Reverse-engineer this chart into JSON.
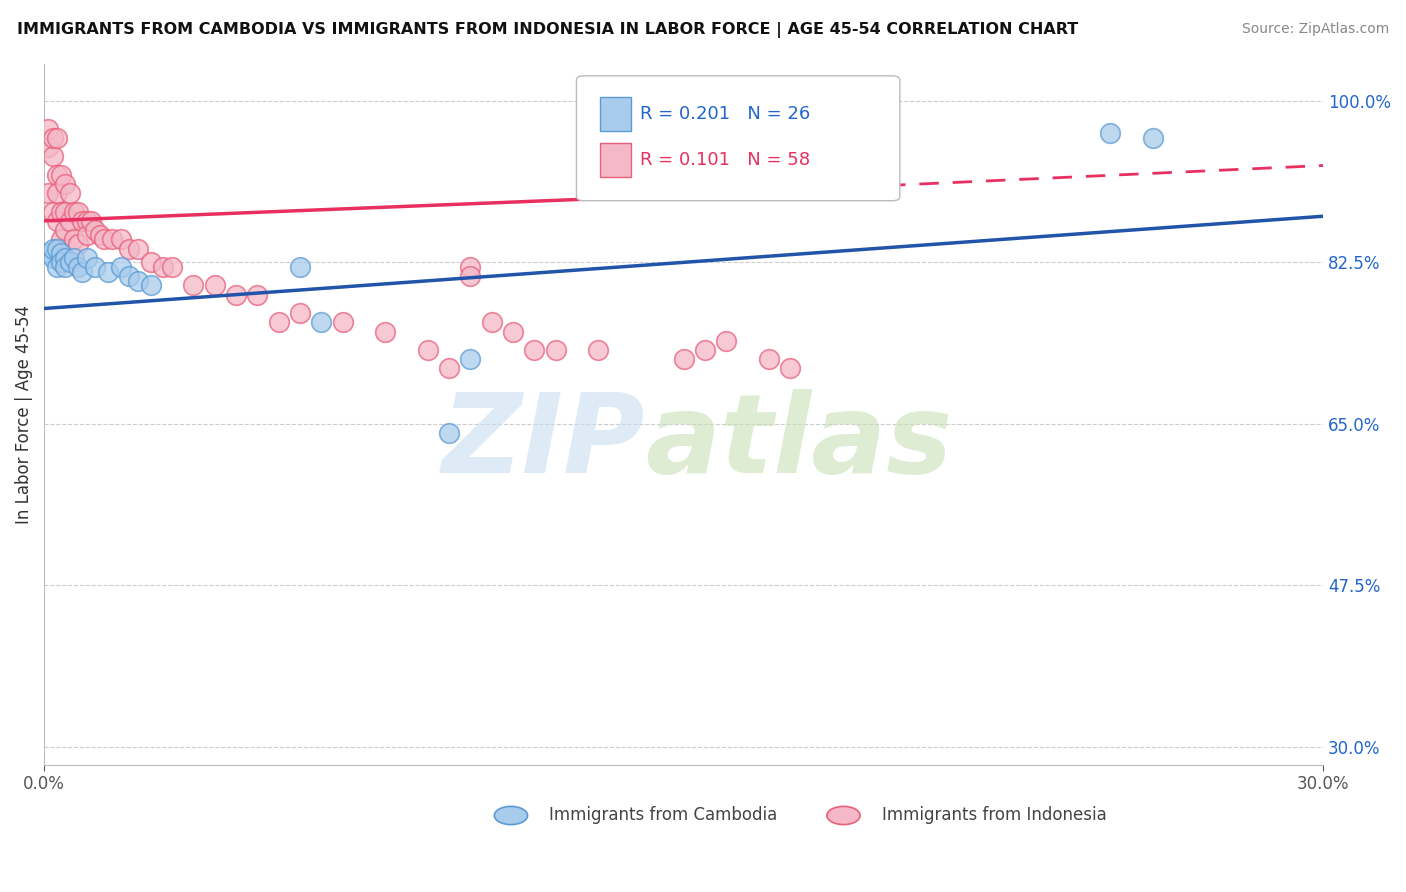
{
  "title": "IMMIGRANTS FROM CAMBODIA VS IMMIGRANTS FROM INDONESIA IN LABOR FORCE | AGE 45-54 CORRELATION CHART",
  "source": "Source: ZipAtlas.com",
  "ylabel": "In Labor Force | Age 45-54",
  "xlim": [
    0.0,
    0.3
  ],
  "ylim": [
    0.28,
    1.04
  ],
  "yticks_right": [
    1.0,
    0.825,
    0.65,
    0.475,
    0.3
  ],
  "yticklabels_right": [
    "100.0%",
    "82.5%",
    "65.0%",
    "47.5%",
    "30.0%"
  ],
  "color_cambodia_fill": "#a8ccec",
  "color_cambodia_edge": "#5b9bd5",
  "color_indonesia_fill": "#f4b8c8",
  "color_indonesia_edge": "#e8607a",
  "color_line_cambodia": "#2255aa",
  "color_line_indonesia": "#e83060",
  "watermark_zip": "#c8dff0",
  "watermark_atlas": "#c8e0b8",
  "cambodia_x": [
    0.001,
    0.002,
    0.002,
    0.003,
    0.003,
    0.004,
    0.004,
    0.005,
    0.005,
    0.006,
    0.007,
    0.008,
    0.009,
    0.01,
    0.012,
    0.015,
    0.018,
    0.02,
    0.022,
    0.025,
    0.06,
    0.065,
    0.095,
    0.1,
    0.25,
    0.26
  ],
  "cambodia_y": [
    0.835,
    0.83,
    0.84,
    0.84,
    0.82,
    0.835,
    0.825,
    0.83,
    0.82,
    0.825,
    0.83,
    0.82,
    0.815,
    0.83,
    0.82,
    0.815,
    0.82,
    0.81,
    0.805,
    0.8,
    0.82,
    0.76,
    0.64,
    0.72,
    0.965,
    0.96
  ],
  "indonesia_x": [
    0.001,
    0.001,
    0.001,
    0.002,
    0.002,
    0.002,
    0.003,
    0.003,
    0.003,
    0.003,
    0.004,
    0.004,
    0.004,
    0.005,
    0.005,
    0.005,
    0.006,
    0.006,
    0.007,
    0.007,
    0.008,
    0.008,
    0.009,
    0.01,
    0.01,
    0.011,
    0.012,
    0.013,
    0.014,
    0.016,
    0.018,
    0.02,
    0.022,
    0.025,
    0.028,
    0.03,
    0.035,
    0.04,
    0.045,
    0.05,
    0.055,
    0.06,
    0.07,
    0.08,
    0.09,
    0.095,
    0.1,
    0.1,
    0.105,
    0.11,
    0.115,
    0.12,
    0.13,
    0.15,
    0.155,
    0.16,
    0.17,
    0.175
  ],
  "indonesia_y": [
    0.9,
    0.95,
    0.97,
    0.94,
    0.96,
    0.88,
    0.96,
    0.92,
    0.9,
    0.87,
    0.92,
    0.88,
    0.85,
    0.91,
    0.88,
    0.86,
    0.9,
    0.87,
    0.88,
    0.85,
    0.88,
    0.845,
    0.87,
    0.87,
    0.855,
    0.87,
    0.86,
    0.855,
    0.85,
    0.85,
    0.85,
    0.84,
    0.84,
    0.825,
    0.82,
    0.82,
    0.8,
    0.8,
    0.79,
    0.79,
    0.76,
    0.77,
    0.76,
    0.75,
    0.73,
    0.71,
    0.82,
    0.81,
    0.76,
    0.75,
    0.73,
    0.73,
    0.73,
    0.72,
    0.73,
    0.74,
    0.72,
    0.71
  ],
  "trendline_cambodia": [
    0.0,
    0.3,
    0.775,
    0.875
  ],
  "trendline_indonesia_solid": [
    0.0,
    0.135,
    0.87,
    0.895
  ],
  "trendline_indonesia_dashed": [
    0.135,
    0.3,
    0.895,
    0.93
  ]
}
